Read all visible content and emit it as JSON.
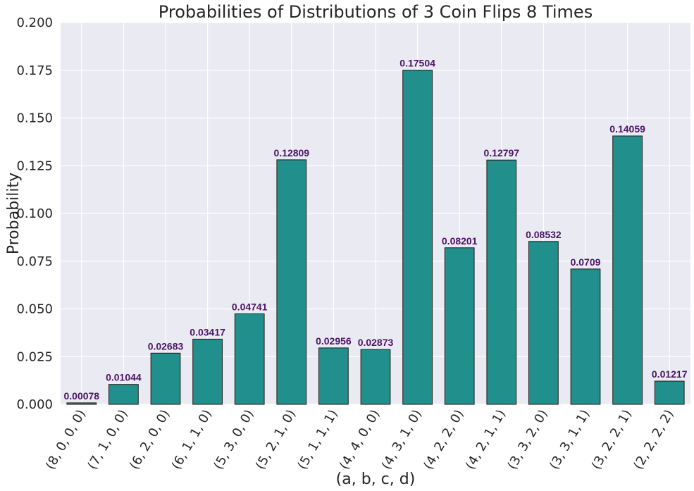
{
  "chart_data": {
    "type": "bar",
    "title": "Probabilities of Distributions of 3 Coin Flips 8 Times",
    "xlabel": "(a, b, c, d)",
    "ylabel": "Probability",
    "ylim": [
      0,
      0.2
    ],
    "yticks": [
      "0.000",
      "0.025",
      "0.050",
      "0.075",
      "0.100",
      "0.125",
      "0.150",
      "0.175",
      "0.200"
    ],
    "categories": [
      "(8, 0, 0, 0)",
      "(7, 1, 0, 0)",
      "(6, 2, 0, 0)",
      "(6, 1, 1, 0)",
      "(5, 3, 0, 0)",
      "(5, 2, 1, 0)",
      "(5, 1, 1, 1)",
      "(4, 4, 0, 0)",
      "(4, 3, 1, 0)",
      "(4, 2, 2, 0)",
      "(4, 2, 1, 1)",
      "(3, 3, 2, 0)",
      "(3, 3, 1, 1)",
      "(3, 2, 2, 1)",
      "(2, 2, 2, 2)"
    ],
    "values": [
      0.00078,
      0.01044,
      0.02683,
      0.03417,
      0.04741,
      0.12809,
      0.02956,
      0.02873,
      0.17504,
      0.08201,
      0.12797,
      0.08532,
      0.0709,
      0.14059,
      0.01217
    ],
    "value_labels": [
      "0.00078",
      "0.01044",
      "0.02683",
      "0.03417",
      "0.04741",
      "0.12809",
      "0.02956",
      "0.02873",
      "0.17504",
      "0.08201",
      "0.12797",
      "0.08532",
      "0.0709",
      "0.14059",
      "0.01217"
    ],
    "grid": true,
    "colors": {
      "bar": "#21908d",
      "bar_edge": "#1a1a1a",
      "background": "#eaeaf2",
      "grid": "#ffffff",
      "label": "#4b1466"
    }
  }
}
